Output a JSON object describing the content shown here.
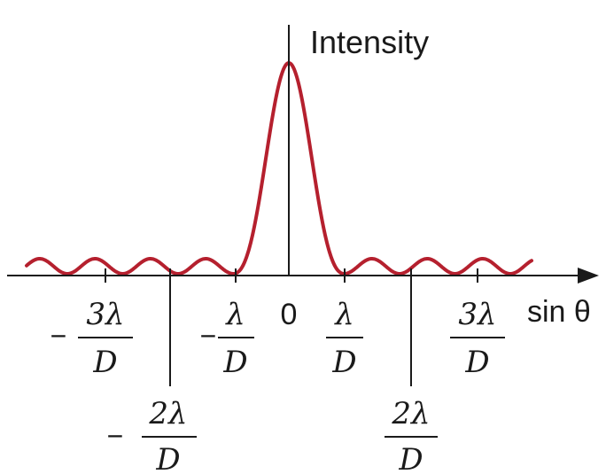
{
  "y_axis_label": "Intensity",
  "x_axis_label": "sin θ",
  "colors": {
    "curve": "#b5202e",
    "axis": "#1a1a1a"
  },
  "ticks": [
    {
      "sign": "−",
      "numerator": "3λ",
      "denominator": "D"
    },
    {
      "sign": "−",
      "numerator": "2λ",
      "denominator": "D"
    },
    {
      "sign": "−",
      "numerator": "λ",
      "denominator": "D"
    },
    {
      "sign": "",
      "numerator": "0",
      "denominator": ""
    },
    {
      "sign": "",
      "numerator": "λ",
      "denominator": "D"
    },
    {
      "sign": "",
      "numerator": "2λ",
      "denominator": "D"
    },
    {
      "sign": "",
      "numerator": "3λ",
      "denominator": "D"
    }
  ]
}
